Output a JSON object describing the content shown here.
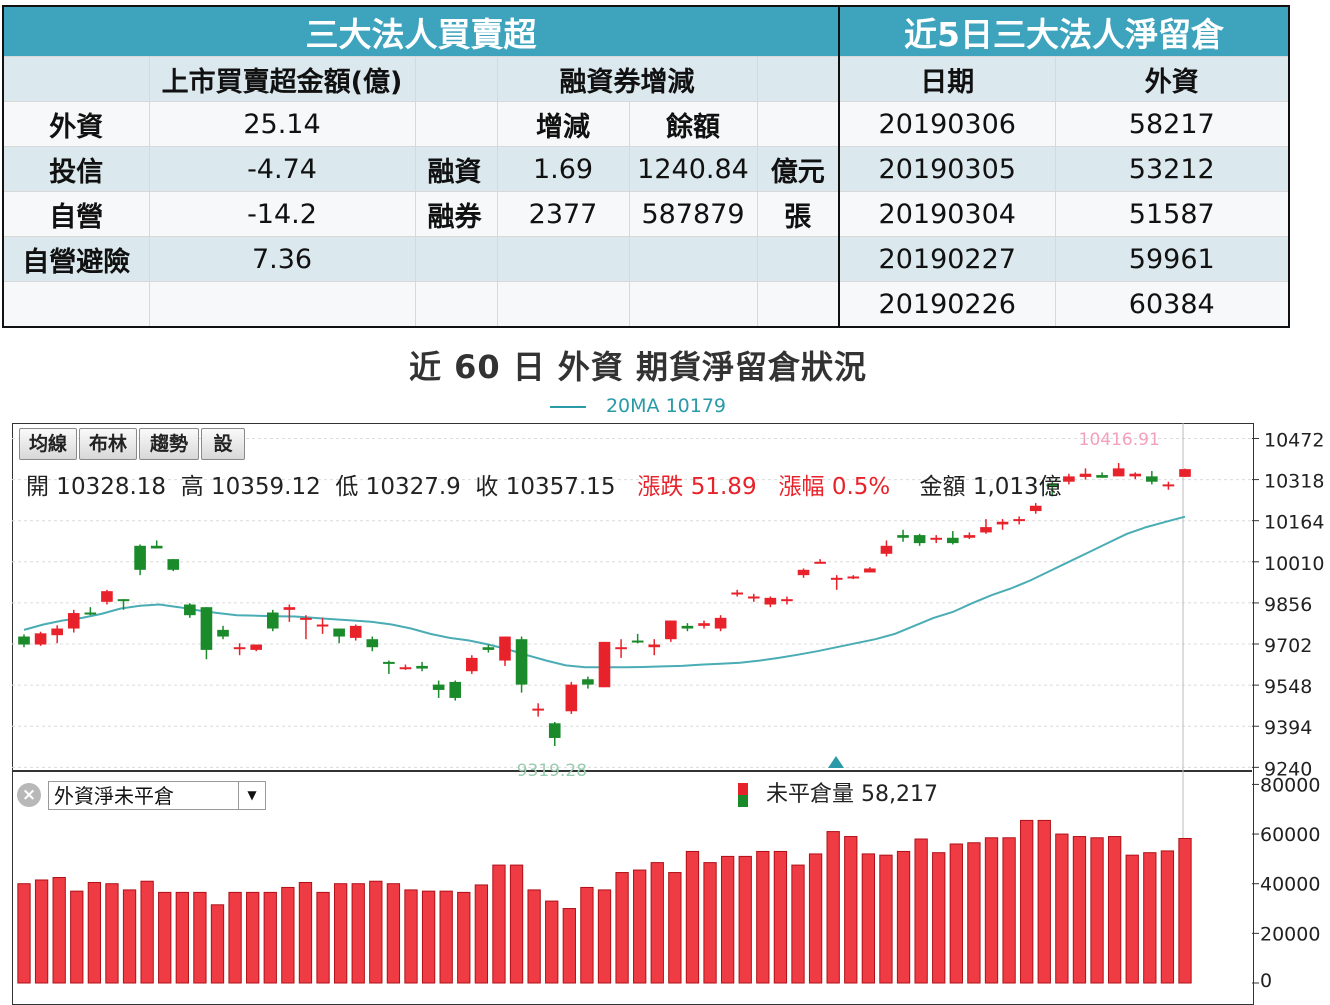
{
  "left_table": {
    "title": "三大法人買賣超",
    "header": [
      "",
      "上市買賣超金額(億)",
      "",
      "融資券增減",
      ""
    ],
    "subheader": [
      "增減",
      "餘額"
    ],
    "rows": [
      {
        "label": "外資",
        "amount": "25.14"
      },
      {
        "label": "投信",
        "amount": "-4.74",
        "m_label": "融資",
        "change": "1.69",
        "balance": "1240.84",
        "unit": "億元"
      },
      {
        "label": "自營",
        "amount": "-14.2",
        "m_label": "融券",
        "change": "2377",
        "balance": "587879",
        "unit": "張"
      },
      {
        "label": "自營避險",
        "amount": "7.36"
      }
    ]
  },
  "right_table": {
    "title": "近5日三大法人淨留倉",
    "header": [
      "日期",
      "外資"
    ],
    "rows": [
      {
        "date": "20190306",
        "value": "58217"
      },
      {
        "date": "20190305",
        "value": "53212"
      },
      {
        "date": "20190304",
        "value": "51587"
      },
      {
        "date": "20190227",
        "value": "59961"
      },
      {
        "date": "20190226",
        "value": "60384"
      }
    ]
  },
  "chart_title": "近 60 日 外資 期貨淨留倉狀況",
  "legend": "20MA 10179",
  "toolbar": [
    "均線",
    "布林",
    "趨勢",
    "設"
  ],
  "ohlc": {
    "open": "開 10328.18",
    "high": "高 10359.12",
    "low": "低 10327.9",
    "close": "收 10357.15",
    "change": "漲跌 51.89",
    "pct": "漲幅 0.5%",
    "amount": "金額 1,013億"
  },
  "indicator_select": "外資淨未平倉",
  "volume_label": "未平倉量 58,217",
  "colors": {
    "up": "#e8222a",
    "down": "#1a8a2a",
    "ma": "#4aacb4",
    "header": "#3ea3bd"
  },
  "chart_data": [
    {
      "type": "candlestick",
      "title": "",
      "price_axis_ticks": [
        10472,
        10318,
        10164,
        10010,
        9856,
        9702,
        9548,
        9394,
        9240
      ],
      "ylim": [
        9230,
        10530
      ],
      "max_label": "10416.91",
      "min_label": "9319.28",
      "series": [
        {
          "name": "20MA",
          "values": [
            9755,
            9775,
            9790,
            9800,
            9815,
            9835,
            9845,
            9850,
            9840,
            9828,
            9818,
            9810,
            9808,
            9806,
            9805,
            9800,
            9795,
            9790,
            9785,
            9775,
            9760,
            9740,
            9725,
            9715,
            9700,
            9682,
            9660,
            9640,
            9622,
            9615,
            9615,
            9615,
            9616,
            9618,
            9620,
            9625,
            9628,
            9632,
            9640,
            9650,
            9662,
            9675,
            9690,
            9705,
            9720,
            9740,
            9770,
            9800,
            9822,
            9855,
            9885,
            9910,
            9940,
            9975,
            10010,
            10045,
            10080,
            10115,
            10140,
            10160,
            10179
          ]
        },
        {
          "name": "OHLC",
          "values": [
            [
              9730,
              9738,
              9690,
              9700
            ],
            [
              9700,
              9748,
              9695,
              9742
            ],
            [
              9735,
              9772,
              9705,
              9760
            ],
            [
              9760,
              9830,
              9745,
              9818
            ],
            [
              9820,
              9840,
              9810,
              9818
            ],
            [
              9860,
              9905,
              9850,
              9900
            ],
            [
              9870,
              9870,
              9830,
              9865
            ],
            [
              10070,
              10075,
              9960,
              9980
            ],
            [
              10070,
              10090,
              10060,
              10060
            ],
            [
              10020,
              10020,
              9975,
              9980
            ],
            [
              9850,
              9855,
              9800,
              9810
            ],
            [
              9840,
              9840,
              9645,
              9680
            ],
            [
              9755,
              9770,
              9720,
              9730
            ],
            [
              9685,
              9705,
              9660,
              9690
            ],
            [
              9680,
              9700,
              9675,
              9700
            ],
            [
              9820,
              9830,
              9750,
              9760
            ],
            [
              9830,
              9850,
              9785,
              9840
            ],
            [
              9800,
              9810,
              9720,
              9800
            ],
            [
              9775,
              9800,
              9740,
              9775
            ],
            [
              9760,
              9760,
              9705,
              9730
            ],
            [
              9725,
              9775,
              9715,
              9770
            ],
            [
              9720,
              9730,
              9675,
              9690
            ],
            [
              9635,
              9640,
              9590,
              9630
            ],
            [
              9615,
              9625,
              9605,
              9615
            ],
            [
              9620,
              9635,
              9600,
              9610
            ],
            [
              9550,
              9565,
              9500,
              9530
            ],
            [
              9560,
              9565,
              9490,
              9500
            ],
            [
              9600,
              9660,
              9590,
              9650
            ],
            [
              9690,
              9700,
              9670,
              9680
            ],
            [
              9640,
              9730,
              9620,
              9730
            ],
            [
              9720,
              9730,
              9520,
              9550
            ],
            [
              9460,
              9480,
              9430,
              9460
            ],
            [
              9405,
              9410,
              9320,
              9350
            ],
            [
              9450,
              9560,
              9440,
              9550
            ],
            [
              9570,
              9580,
              9535,
              9550
            ],
            [
              9540,
              9710,
              9540,
              9710
            ],
            [
              9690,
              9720,
              9650,
              9690
            ],
            [
              9715,
              9740,
              9705,
              9710
            ],
            [
              9690,
              9720,
              9660,
              9700
            ],
            [
              9720,
              9790,
              9710,
              9790
            ],
            [
              9770,
              9780,
              9750,
              9760
            ],
            [
              9770,
              9790,
              9760,
              9780
            ],
            [
              9760,
              9810,
              9750,
              9800
            ],
            [
              9890,
              9905,
              9880,
              9895
            ],
            [
              9880,
              9890,
              9860,
              9880
            ],
            [
              9850,
              9880,
              9840,
              9875
            ],
            [
              9870,
              9880,
              9850,
              9870
            ],
            [
              9960,
              9985,
              9950,
              9980
            ],
            [
              10010,
              10020,
              10005,
              10010
            ],
            [
              9950,
              9960,
              9905,
              9950
            ],
            [
              9950,
              9960,
              9945,
              9955
            ],
            [
              9970,
              9990,
              9970,
              9985
            ],
            [
              10040,
              10090,
              10030,
              10070
            ],
            [
              10110,
              10130,
              10085,
              10100
            ],
            [
              10110,
              10115,
              10070,
              10080
            ],
            [
              10100,
              10110,
              10080,
              10100
            ],
            [
              10100,
              10125,
              10075,
              10080
            ],
            [
              10100,
              10120,
              10095,
              10110
            ],
            [
              10120,
              10170,
              10115,
              10140
            ],
            [
              10150,
              10170,
              10130,
              10160
            ],
            [
              10170,
              10180,
              10150,
              10170
            ],
            [
              10200,
              10230,
              10190,
              10220
            ],
            [
              10300,
              10310,
              10255,
              10295
            ],
            [
              10310,
              10340,
              10300,
              10330
            ],
            [
              10328,
              10360,
              10318,
              10340
            ],
            [
              10335,
              10345,
              10325,
              10325
            ],
            [
              10330,
              10380,
              10340,
              10360
            ],
            [
              10330,
              10345,
              10320,
              10340
            ],
            [
              10330,
              10350,
              10300,
              10310
            ],
            [
              10300,
              10310,
              10280,
              10300
            ],
            [
              10328.18,
              10359.12,
              10327.9,
              10357.15
            ]
          ]
        }
      ]
    },
    {
      "type": "bar",
      "title": "",
      "ylim": [
        0,
        85000
      ],
      "y_ticks": [
        80000,
        60000,
        40000,
        20000,
        0
      ],
      "series": [
        {
          "name": "未平倉量",
          "values": [
            40000,
            41500,
            42500,
            37000,
            40500,
            40000,
            37500,
            41000,
            36500,
            36500,
            36500,
            31500,
            36500,
            36500,
            36500,
            38500,
            40500,
            36500,
            40000,
            40000,
            41000,
            40000,
            37500,
            37000,
            37000,
            36500,
            39500,
            47500,
            47500,
            37500,
            33000,
            30000,
            38500,
            37500,
            44500,
            45500,
            48500,
            44500,
            53000,
            48500,
            51000,
            51000,
            53000,
            53000,
            47500,
            52000,
            61000,
            59000,
            52000,
            51500,
            53000,
            58000,
            52500,
            56000,
            56500,
            58500,
            58500,
            65500,
            65500,
            60000,
            59000,
            58500,
            59000,
            51500,
            52500,
            53212,
            58217
          ]
        }
      ]
    }
  ]
}
